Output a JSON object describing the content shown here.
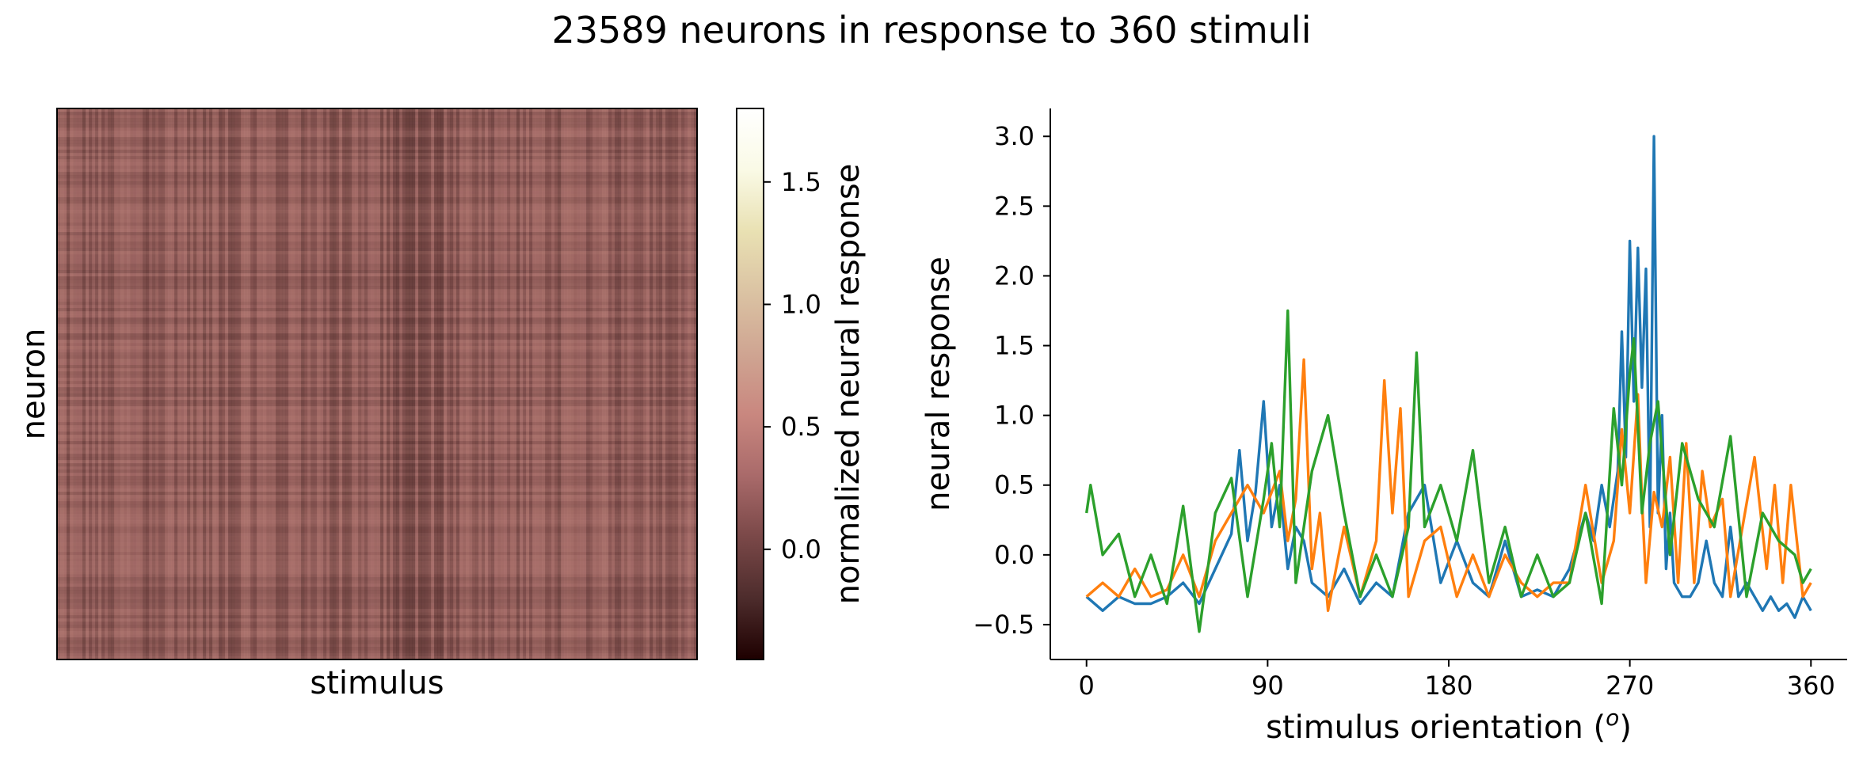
{
  "suptitle": "23589 neurons in response to 360 stimuli",
  "chart_data": [
    {
      "type": "heatmap",
      "title": "",
      "xlabel": "stimulus",
      "ylabel": "neuron",
      "n_rows": 23589,
      "n_cols": 360,
      "xticks": [],
      "yticks": [],
      "colormap": "pink",
      "colorbar": {
        "label": "normalized neural response",
        "range": [
          -0.45,
          1.8
        ],
        "ticks": [
          0.0,
          0.5,
          1.0,
          1.5
        ],
        "tick_labels": [
          "0.0",
          "0.5",
          "1.0",
          "1.5"
        ],
        "colors": [
          "#1e0000",
          "#4d2c2c",
          "#7a4848",
          "#a96a6a",
          "#c9877f",
          "#cfa592",
          "#dbc3a3",
          "#e9e1b3",
          "#fafae6",
          "#ffffff"
        ]
      }
    },
    {
      "type": "line",
      "title": "",
      "xlabel": "stimulus orientation (",
      "xlabel_super": "o",
      "xlabel_end": ")",
      "ylabel": "neural response",
      "xlim": [
        -18,
        378
      ],
      "ylim": [
        -0.75,
        3.2
      ],
      "xticks": [
        0,
        90,
        180,
        270,
        360
      ],
      "xtick_labels": [
        "0",
        "90",
        "180",
        "270",
        "360"
      ],
      "yticks": [
        -0.5,
        0.0,
        0.5,
        1.0,
        1.5,
        2.0,
        2.5,
        3.0
      ],
      "ytick_labels": [
        "−0.5",
        "0.0",
        "0.5",
        "1.0",
        "1.5",
        "2.0",
        "2.5",
        "3.0"
      ],
      "grid": false,
      "legend": false,
      "series": [
        {
          "color": "#1f77b4",
          "x": [
            0,
            8,
            16,
            24,
            32,
            40,
            48,
            56,
            64,
            72,
            76,
            80,
            84,
            88,
            92,
            96,
            100,
            104,
            108,
            112,
            120,
            128,
            136,
            144,
            152,
            160,
            168,
            176,
            184,
            192,
            200,
            208,
            216,
            224,
            232,
            240,
            248,
            252,
            256,
            260,
            264,
            266,
            268,
            270,
            272,
            274,
            276,
            278,
            280,
            282,
            284,
            286,
            288,
            290,
            292,
            296,
            300,
            304,
            308,
            312,
            316,
            320,
            324,
            328,
            332,
            336,
            340,
            344,
            348,
            352,
            356,
            360
          ],
          "y": [
            -0.3,
            -0.4,
            -0.3,
            -0.35,
            -0.35,
            -0.3,
            -0.2,
            -0.35,
            -0.1,
            0.15,
            0.75,
            0.1,
            0.45,
            1.1,
            0.2,
            0.5,
            -0.1,
            0.2,
            0.1,
            -0.2,
            -0.3,
            -0.1,
            -0.35,
            -0.2,
            -0.3,
            0.3,
            0.5,
            -0.2,
            0.1,
            -0.2,
            -0.3,
            0.1,
            -0.3,
            -0.25,
            -0.3,
            -0.1,
            0.3,
            0.1,
            0.5,
            0.2,
            0.6,
            1.6,
            0.7,
            2.25,
            1.1,
            2.2,
            1.2,
            2.05,
            0.2,
            3.0,
            0.3,
            1.0,
            -0.1,
            0.3,
            -0.2,
            -0.3,
            -0.3,
            -0.2,
            0.1,
            -0.2,
            -0.3,
            0.2,
            -0.3,
            -0.2,
            -0.3,
            -0.4,
            -0.3,
            -0.4,
            -0.35,
            -0.45,
            -0.3,
            -0.4
          ]
        },
        {
          "color": "#ff7f0e",
          "x": [
            0,
            8,
            16,
            24,
            32,
            40,
            48,
            56,
            64,
            72,
            80,
            88,
            96,
            100,
            104,
            108,
            112,
            116,
            120,
            128,
            136,
            144,
            148,
            152,
            156,
            160,
            168,
            176,
            184,
            192,
            200,
            208,
            216,
            224,
            232,
            240,
            248,
            256,
            262,
            266,
            270,
            274,
            276,
            278,
            282,
            286,
            290,
            294,
            298,
            302,
            306,
            310,
            316,
            320,
            326,
            332,
            338,
            342,
            346,
            350,
            356,
            360
          ],
          "y": [
            -0.3,
            -0.2,
            -0.3,
            -0.1,
            -0.3,
            -0.25,
            0.0,
            -0.3,
            0.1,
            0.3,
            0.5,
            0.3,
            0.6,
            0.1,
            0.4,
            1.4,
            -0.1,
            0.3,
            -0.4,
            0.2,
            -0.3,
            0.1,
            1.25,
            0.3,
            1.05,
            -0.3,
            0.1,
            0.2,
            -0.3,
            0.0,
            -0.3,
            0.0,
            -0.2,
            -0.3,
            -0.2,
            -0.2,
            0.5,
            -0.2,
            0.1,
            0.9,
            0.3,
            1.15,
            0.4,
            -0.2,
            0.45,
            0.2,
            0.7,
            -0.2,
            0.8,
            -0.2,
            0.6,
            0.2,
            0.4,
            -0.3,
            0.2,
            0.7,
            -0.1,
            0.5,
            -0.2,
            0.5,
            -0.3,
            -0.2
          ]
        },
        {
          "color": "#2ca02c",
          "x": [
            0,
            2,
            8,
            16,
            24,
            32,
            40,
            48,
            56,
            64,
            72,
            80,
            88,
            92,
            96,
            100,
            104,
            112,
            120,
            128,
            136,
            144,
            152,
            160,
            164,
            168,
            176,
            184,
            192,
            200,
            208,
            216,
            224,
            232,
            240,
            248,
            256,
            262,
            266,
            270,
            272,
            276,
            280,
            284,
            290,
            296,
            304,
            312,
            320,
            328,
            336,
            344,
            352,
            356,
            360
          ],
          "y": [
            0.3,
            0.5,
            0.0,
            0.15,
            -0.3,
            0.0,
            -0.35,
            0.35,
            -0.55,
            0.3,
            0.55,
            -0.3,
            0.4,
            0.8,
            0.2,
            1.75,
            -0.2,
            0.6,
            1.0,
            0.3,
            -0.3,
            0.0,
            -0.3,
            0.2,
            1.45,
            0.2,
            0.5,
            0.1,
            0.75,
            -0.2,
            0.2,
            -0.3,
            0.0,
            -0.3,
            -0.2,
            0.3,
            -0.35,
            1.05,
            0.5,
            1.3,
            1.55,
            0.3,
            0.8,
            1.1,
            0.0,
            0.8,
            0.4,
            0.2,
            0.85,
            -0.3,
            0.3,
            0.1,
            0.0,
            -0.2,
            -0.1
          ]
        }
      ]
    }
  ]
}
